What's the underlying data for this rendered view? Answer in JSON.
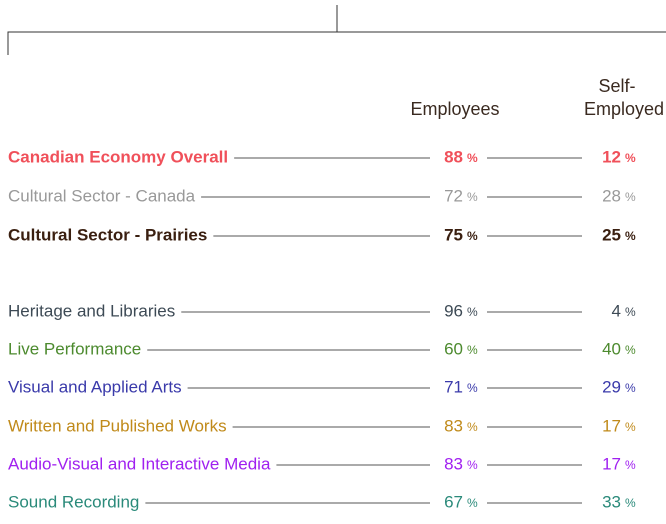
{
  "header": {
    "employees": "Employees",
    "self_employed_1": "Self-",
    "self_employed_2": "Employed"
  },
  "unit": "%",
  "rows": [
    {
      "label": "Canadian Economy Overall",
      "employees": 88,
      "self_employed": 12,
      "color": "#f0505a"
    },
    {
      "label": "Cultural Sector - Canada",
      "employees": 72,
      "self_employed": 28,
      "color": "#999999"
    },
    {
      "label": "Cultural Sector - Prairies",
      "employees": 75,
      "self_employed": 25,
      "color": "#3a1f10"
    },
    {
      "label": "Heritage and Libraries",
      "employees": 96,
      "self_employed": 4,
      "color": "#3d4a55"
    },
    {
      "label": "Live Performance",
      "employees": 60,
      "self_employed": 40,
      "color": "#4c8a2e"
    },
    {
      "label": "Visual and Applied Arts",
      "employees": 71,
      "self_employed": 29,
      "color": "#3a3aaa"
    },
    {
      "label": "Written and Published Works",
      "employees": 83,
      "self_employed": 17,
      "color": "#c08a1a"
    },
    {
      "label": "Audio-Visual and Interactive Media",
      "employees": 83,
      "self_employed": 17,
      "color": "#a020f0"
    },
    {
      "label": "Sound Recording",
      "employees": 67,
      "self_employed": 33,
      "color": "#2a8a7a"
    }
  ]
}
